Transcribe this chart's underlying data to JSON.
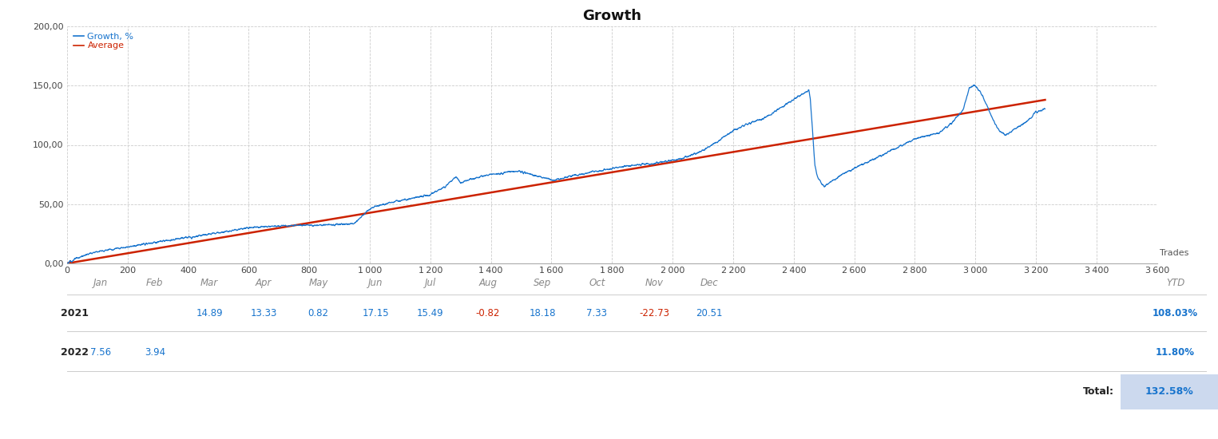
{
  "title": "Growth",
  "title_fontsize": 13,
  "background_color": "#ffffff",
  "chart_bg": "#ffffff",
  "grid_color": "#cccccc",
  "grid_style": "--",
  "ylim": [
    0,
    200
  ],
  "yticks": [
    0,
    50,
    100,
    150,
    200
  ],
  "ytick_labels": [
    "0,00",
    "50,00",
    "100,00",
    "150,00",
    "200,00"
  ],
  "xlim": [
    0,
    3600
  ],
  "xticks": [
    0,
    200,
    400,
    600,
    800,
    1000,
    1200,
    1400,
    1600,
    1800,
    2000,
    2200,
    2400,
    2600,
    2800,
    3000,
    3200,
    3400,
    3600
  ],
  "xlabel_trades": "Trades",
  "line_color": "#1874CD",
  "avg_color": "#cc2200",
  "legend_growth": "Growth, %",
  "legend_avg": "Average",
  "legend_fontsize": 8,
  "tick_fontsize": 8,
  "table_months": [
    "Jan",
    "Feb",
    "Mar",
    "Apr",
    "May",
    "Jun",
    "Jul",
    "Aug",
    "Sep",
    "Oct",
    "Nov",
    "Dec",
    "YTD"
  ],
  "table_years": [
    "2021",
    "2022"
  ],
  "table_2021": [
    "",
    "",
    "14.89",
    "13.33",
    "0.82",
    "17.15",
    "15.49",
    "-0.82",
    "18.18",
    "7.33",
    "-22.73",
    "20.51",
    "108.03%"
  ],
  "table_2022": [
    "7.56",
    "3.94",
    "",
    "",
    "",
    "",
    "",
    "",
    "",
    "",
    "",
    "",
    "11.80%"
  ],
  "table_total_label": "Total:",
  "table_total_value": "132.58%",
  "neg_color": "#cc2200",
  "pos_color": "#1874CD",
  "year_color": "#222222",
  "month_color": "#888888",
  "total_bg": "#ccd9ee",
  "curve_x": [
    0,
    30,
    60,
    100,
    150,
    200,
    250,
    300,
    350,
    400,
    450,
    500,
    550,
    600,
    650,
    700,
    750,
    800,
    850,
    900,
    950,
    1000,
    1020,
    1050,
    1080,
    1100,
    1130,
    1160,
    1200,
    1230,
    1250,
    1270,
    1285,
    1300,
    1320,
    1350,
    1380,
    1400,
    1430,
    1460,
    1490,
    1520,
    1550,
    1580,
    1610,
    1640,
    1670,
    1700,
    1730,
    1760,
    1800,
    1840,
    1880,
    1920,
    1960,
    2000,
    2050,
    2100,
    2150,
    2200,
    2250,
    2300,
    2350,
    2380,
    2410,
    2430,
    2450,
    2455,
    2460,
    2465,
    2470,
    2480,
    2490,
    2500,
    2510,
    2530,
    2560,
    2600,
    2640,
    2680,
    2720,
    2760,
    2800,
    2840,
    2880,
    2920,
    2960,
    2980,
    3000,
    3020,
    3040,
    3060,
    3080,
    3100,
    3120,
    3140,
    3160,
    3180,
    3200,
    3230
  ],
  "curve_y": [
    0,
    4,
    7,
    10,
    12,
    14,
    16,
    18,
    20,
    22,
    24,
    26,
    28,
    30,
    31,
    31.5,
    32,
    32,
    32.5,
    33,
    34,
    46,
    48,
    50,
    52,
    53,
    54,
    56,
    58,
    62,
    65,
    70,
    73,
    68,
    70,
    72,
    74,
    75,
    76,
    77,
    78,
    76,
    74,
    72,
    70,
    72,
    74,
    75,
    77,
    78,
    80,
    82,
    83,
    84,
    85,
    87,
    90,
    95,
    103,
    112,
    118,
    122,
    130,
    135,
    140,
    143,
    146,
    138,
    120,
    100,
    82,
    72,
    68,
    65,
    67,
    70,
    75,
    80,
    85,
    90,
    95,
    100,
    105,
    108,
    110,
    118,
    130,
    148,
    150,
    143,
    132,
    120,
    112,
    108,
    112,
    115,
    118,
    122,
    128,
    130
  ]
}
